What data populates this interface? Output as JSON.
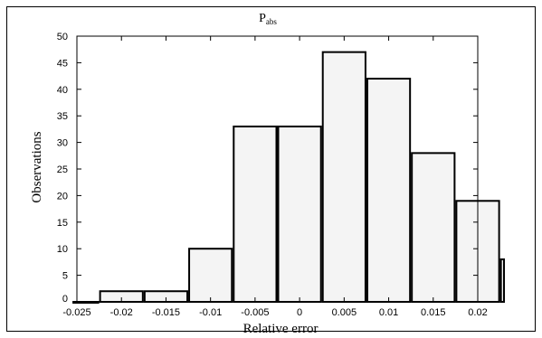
{
  "chart_data": {
    "type": "bar",
    "title_main": "P",
    "title_sub": "abs",
    "xlabel": "Relative error",
    "ylabel": "Observations",
    "xlim": [
      -0.025,
      0.02
    ],
    "ylim": [
      0,
      50
    ],
    "xticks": [
      {
        "value": -0.025,
        "label": "-0.025"
      },
      {
        "value": -0.02,
        "label": "-0.02"
      },
      {
        "value": -0.015,
        "label": "-0.015"
      },
      {
        "value": -0.01,
        "label": "-0.01"
      },
      {
        "value": -0.005,
        "label": "-0.005"
      },
      {
        "value": 0,
        "label": "0"
      },
      {
        "value": 0.005,
        "label": "0.005"
      },
      {
        "value": 0.01,
        "label": "0.01"
      },
      {
        "value": 0.015,
        "label": "0.015"
      },
      {
        "value": 0.02,
        "label": "0.02"
      }
    ],
    "yticks": [
      {
        "value": 0,
        "label": "0"
      },
      {
        "value": 5,
        "label": "5"
      },
      {
        "value": 10,
        "label": "10"
      },
      {
        "value": 15,
        "label": "15"
      },
      {
        "value": 20,
        "label": "20"
      },
      {
        "value": 25,
        "label": "25"
      },
      {
        "value": 30,
        "label": "30"
      },
      {
        "value": 35,
        "label": "35"
      },
      {
        "value": 40,
        "label": "40"
      },
      {
        "value": 45,
        "label": "45"
      },
      {
        "value": 50,
        "label": "50"
      }
    ],
    "bins": [
      {
        "start": -0.0255,
        "end": -0.0225,
        "value": 0
      },
      {
        "start": -0.0225,
        "end": -0.0175,
        "value": 2
      },
      {
        "start": -0.0175,
        "end": -0.0125,
        "value": 2
      },
      {
        "start": -0.0125,
        "end": -0.0075,
        "value": 10
      },
      {
        "start": -0.0075,
        "end": -0.0025,
        "value": 33
      },
      {
        "start": -0.0025,
        "end": 0.0025,
        "value": 33
      },
      {
        "start": 0.0025,
        "end": 0.0075,
        "value": 47
      },
      {
        "start": 0.0075,
        "end": 0.0125,
        "value": 42
      },
      {
        "start": 0.0125,
        "end": 0.0175,
        "value": 28
      },
      {
        "start": 0.0175,
        "end": 0.0225,
        "value": 19
      },
      {
        "start": 0.0225,
        "end": 0.0275,
        "value": 8
      }
    ],
    "bar_fill": "#f4f4f4",
    "bar_stroke": "#000000",
    "grid": false
  }
}
